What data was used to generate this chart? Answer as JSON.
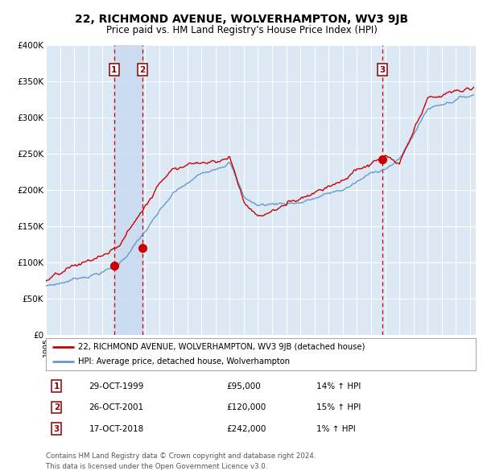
{
  "title": "22, RICHMOND AVENUE, WOLVERHAMPTON, WV3 9JB",
  "subtitle": "Price paid vs. HM Land Registry's House Price Index (HPI)",
  "title_fontsize": 10,
  "subtitle_fontsize": 8.5,
  "background_color": "#ffffff",
  "plot_bg_color": "#dce9f5",
  "grid_color": "#ffffff",
  "red_line_color": "#cc0000",
  "blue_line_color": "#6699cc",
  "sale_marker_color": "#cc0000",
  "dashed_line_color": "#cc0000",
  "shade_color": "#c8daf0",
  "ylim": [
    0,
    400000
  ],
  "yticks": [
    0,
    50000,
    100000,
    150000,
    200000,
    250000,
    300000,
    350000,
    400000
  ],
  "sale_dates": [
    1999.83,
    2001.82,
    2018.8
  ],
  "sale_prices": [
    95000,
    120000,
    242000
  ],
  "sale_labels": [
    "1",
    "2",
    "3"
  ],
  "sale_info": [
    {
      "label": "1",
      "date": "29-OCT-1999",
      "price": "£95,000",
      "hpi": "14% ↑ HPI"
    },
    {
      "label": "2",
      "date": "26-OCT-2001",
      "price": "£120,000",
      "hpi": "15% ↑ HPI"
    },
    {
      "label": "3",
      "date": "17-OCT-2018",
      "price": "£242,000",
      "hpi": "1% ↑ HPI"
    }
  ],
  "legend_entries": [
    "22, RICHMOND AVENUE, WOLVERHAMPTON, WV3 9JB (detached house)",
    "HPI: Average price, detached house, Wolverhampton"
  ],
  "footer1": "Contains HM Land Registry data © Crown copyright and database right 2024.",
  "footer2": "This data is licensed under the Open Government Licence v3.0."
}
